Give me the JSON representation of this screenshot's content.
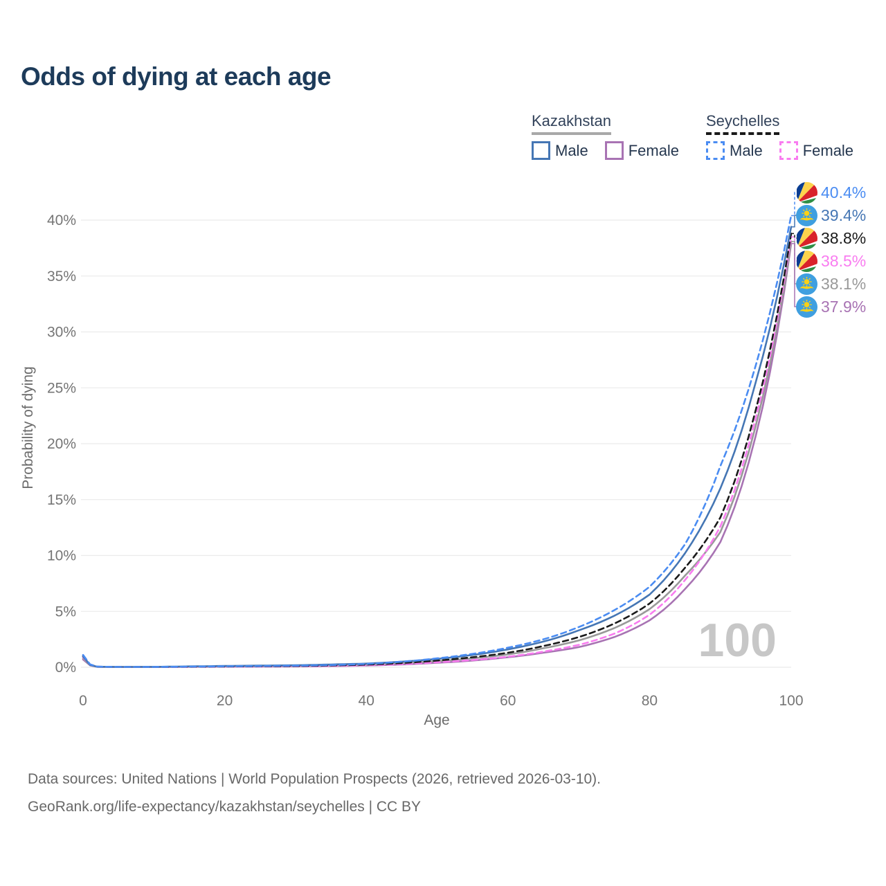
{
  "title": "Odds of dying at each age",
  "legend": {
    "groups": [
      {
        "id": "kz",
        "label": "Kazakhstan",
        "line_style": "solid",
        "header_line_color": "#a8a8a8",
        "items": [
          {
            "label": "Male",
            "color": "#4576b4",
            "dashed": false
          },
          {
            "label": "Female",
            "color": "#a873b3",
            "dashed": false
          }
        ]
      },
      {
        "id": "sc",
        "label": "Seychelles",
        "line_style": "dashed",
        "header_line_color": "#1a1a1a",
        "items": [
          {
            "label": "Male",
            "color": "#4a8cf2",
            "dashed": true
          },
          {
            "label": "Female",
            "color": "#f97cf0",
            "dashed": true
          }
        ]
      }
    ]
  },
  "watermark": "100",
  "footer": {
    "line1": "Data sources: United Nations | World Population Prospects (2026, retrieved 2026-03-10).",
    "line2": "GeoRank.org/life-expectancy/kazakhstan/seychelles | CC BY"
  },
  "chart_data": {
    "type": "line",
    "title": "Odds of dying at each age",
    "xlabel": "Age",
    "ylabel": "Probability of dying",
    "xlim": [
      0,
      100
    ],
    "ylim": [
      0,
      40
    ],
    "x_ticks": [
      0,
      20,
      40,
      60,
      80,
      100
    ],
    "y_tick_values": [
      0,
      5,
      10,
      15,
      20,
      25,
      30,
      35,
      40
    ],
    "y_tick_labels": [
      "0%",
      "5%",
      "10%",
      "15%",
      "20%",
      "25%",
      "30%",
      "35%",
      "40%"
    ],
    "grid": "horizontal",
    "legend_position": "top-right",
    "unit": "percent",
    "ages": [
      0,
      2,
      5,
      10,
      15,
      20,
      25,
      30,
      35,
      40,
      45,
      50,
      55,
      60,
      65,
      70,
      75,
      80,
      85,
      90,
      95,
      100
    ],
    "series": [
      {
        "name": "Seychelles Male",
        "country": "Seychelles",
        "sex": "Male",
        "flag": "sc",
        "color": "#4a8cf2",
        "dashed": true,
        "end_label": "40.4%",
        "end_value": 40.4,
        "values": [
          1.1,
          0.06,
          0.03,
          0.03,
          0.06,
          0.09,
          0.11,
          0.14,
          0.2,
          0.3,
          0.5,
          0.8,
          1.2,
          1.75,
          2.5,
          3.6,
          5.1,
          7.2,
          11.0,
          18.0,
          27.0,
          40.4
        ]
      },
      {
        "name": "Kazakhstan Male",
        "country": "Kazakhstan",
        "sex": "Male",
        "flag": "kz",
        "color": "#4576b4",
        "dashed": false,
        "end_label": "39.4%",
        "end_value": 39.4,
        "values": [
          0.95,
          0.05,
          0.03,
          0.04,
          0.08,
          0.12,
          0.15,
          0.18,
          0.25,
          0.33,
          0.5,
          0.75,
          1.1,
          1.6,
          2.3,
          3.3,
          4.6,
          6.5,
          10.2,
          16.0,
          25.5,
          39.4
        ]
      },
      {
        "name": "Seychelles Both sexes",
        "country": "Seychelles",
        "sex": "Both",
        "flag": "sc",
        "color": "#1a1a1a",
        "dashed": true,
        "end_label": "38.8%",
        "end_value": 38.8,
        "values": [
          1.0,
          0.05,
          0.03,
          0.03,
          0.05,
          0.07,
          0.09,
          0.11,
          0.16,
          0.24,
          0.38,
          0.6,
          0.9,
          1.3,
          1.9,
          2.7,
          3.9,
          5.7,
          8.9,
          13.4,
          23.0,
          38.8
        ]
      },
      {
        "name": "Seychelles Female",
        "country": "Seychelles",
        "sex": "Female",
        "flag": "sc",
        "color": "#f97cf0",
        "dashed": true,
        "end_label": "38.5%",
        "end_value": 38.5,
        "values": [
          0.9,
          0.05,
          0.02,
          0.02,
          0.04,
          0.05,
          0.07,
          0.08,
          0.12,
          0.18,
          0.28,
          0.45,
          0.65,
          0.95,
          1.4,
          2.0,
          3.0,
          4.7,
          7.8,
          12.6,
          22.3,
          38.5
        ]
      },
      {
        "name": "Kazakhstan Both sexes",
        "country": "Kazakhstan",
        "sex": "Both",
        "flag": "kz",
        "color": "#999999",
        "dashed": false,
        "end_label": "38.1%",
        "end_value": 38.1,
        "values": [
          0.8,
          0.04,
          0.02,
          0.03,
          0.05,
          0.08,
          0.1,
          0.12,
          0.17,
          0.24,
          0.36,
          0.55,
          0.8,
          1.15,
          1.7,
          2.4,
          3.5,
          5.2,
          8.2,
          12.1,
          21.6,
          38.1
        ]
      },
      {
        "name": "Kazakhstan Female",
        "country": "Kazakhstan",
        "sex": "Female",
        "flag": "kz",
        "color": "#a873b3",
        "dashed": false,
        "end_label": "37.9%",
        "end_value": 37.9,
        "values": [
          0.7,
          0.04,
          0.02,
          0.02,
          0.04,
          0.05,
          0.06,
          0.08,
          0.11,
          0.16,
          0.25,
          0.4,
          0.6,
          0.9,
          1.3,
          1.8,
          2.7,
          4.2,
          7.0,
          11.2,
          20.7,
          37.9
        ]
      }
    ]
  },
  "colors": {
    "title": "#1d3b5a",
    "tick_label": "#757575",
    "axis_title": "#6b6b6b",
    "gridline": "#ebebeb",
    "watermark": "#c7c7c7",
    "footer": "#686868"
  }
}
